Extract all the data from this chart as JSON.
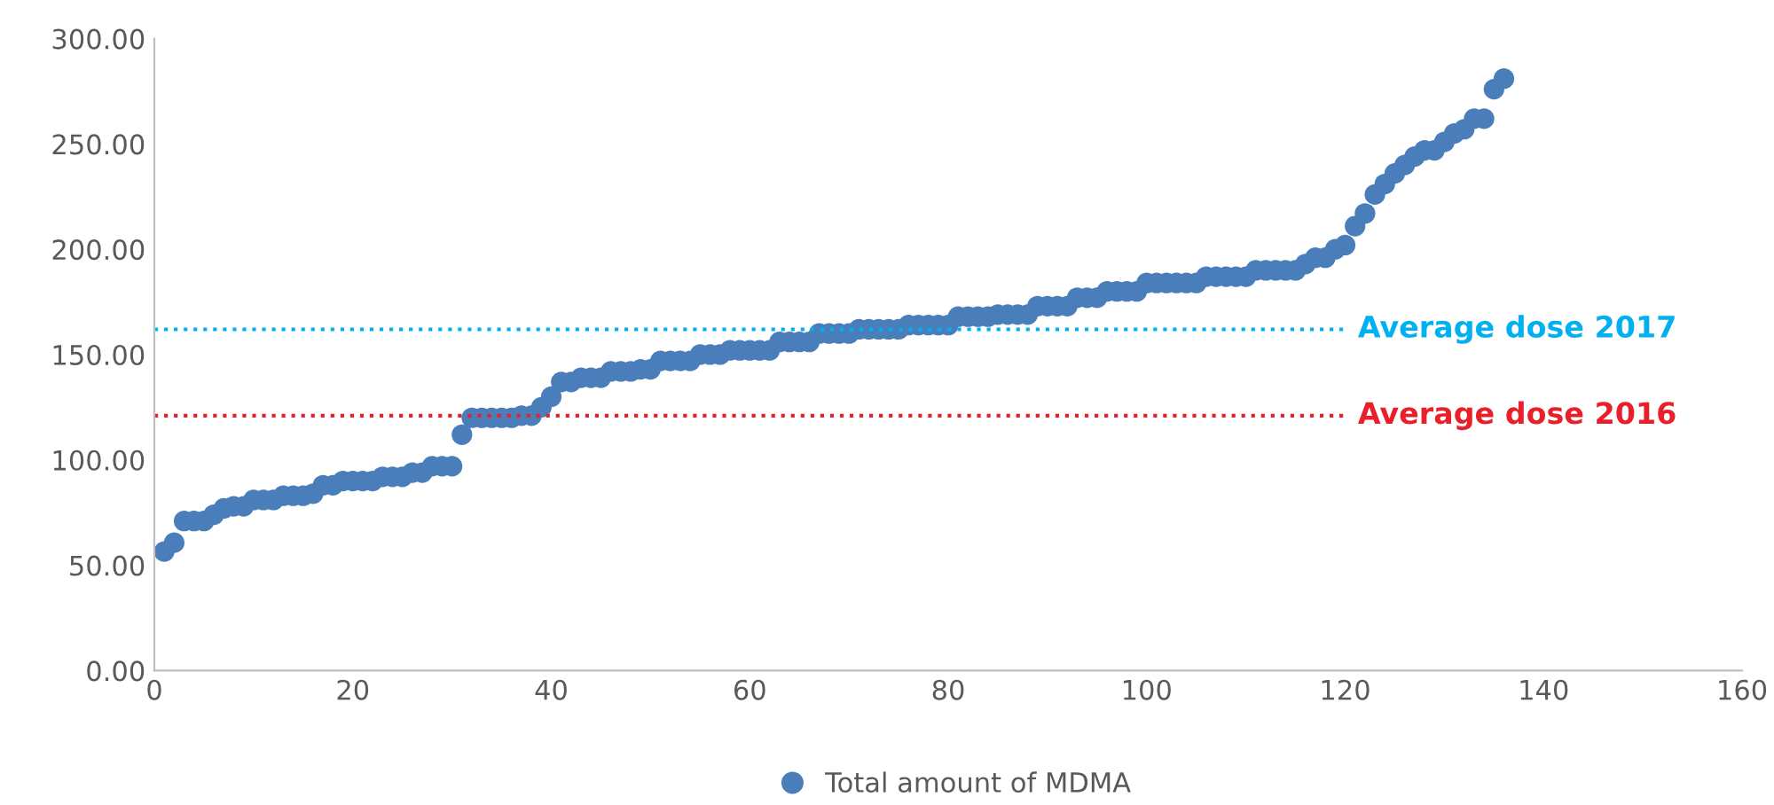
{
  "chart_data": {
    "type": "scatter",
    "x": [
      1,
      2,
      3,
      4,
      5,
      6,
      7,
      8,
      9,
      10,
      11,
      12,
      13,
      14,
      15,
      16,
      17,
      18,
      19,
      20,
      21,
      22,
      23,
      24,
      25,
      26,
      27,
      28,
      29,
      30,
      31,
      32,
      33,
      34,
      35,
      36,
      37,
      38,
      39,
      40,
      41,
      42,
      43,
      44,
      45,
      46,
      47,
      48,
      49,
      50,
      51,
      52,
      53,
      54,
      55,
      56,
      57,
      58,
      59,
      60,
      61,
      62,
      63,
      64,
      65,
      66,
      67,
      68,
      69,
      70,
      71,
      72,
      73,
      74,
      75,
      76,
      77,
      78,
      79,
      80,
      81,
      82,
      83,
      84,
      85,
      86,
      87,
      88,
      89,
      90,
      91,
      92,
      93,
      94,
      95,
      96,
      97,
      98,
      99,
      100,
      101,
      102,
      103,
      104,
      105,
      106,
      107,
      108,
      109,
      110,
      111,
      112,
      113,
      114,
      115,
      116,
      117,
      118,
      119,
      120,
      121,
      122,
      123,
      124,
      125,
      126,
      127,
      128,
      129,
      130,
      131,
      132,
      133,
      134,
      135,
      136
    ],
    "series": [
      {
        "name": "Total amount of MDMA",
        "color": "#4a7ebb",
        "values": [
          56.5,
          60.7,
          71,
          71,
          71,
          74,
          77,
          78,
          78,
          81,
          81,
          81,
          83,
          83,
          83,
          84,
          88,
          88,
          90,
          90,
          90,
          90,
          92,
          92,
          92,
          94,
          94,
          97,
          97,
          97,
          112,
          120,
          120,
          120,
          120,
          120,
          121,
          121,
          125,
          130,
          137,
          137,
          139,
          139,
          139,
          142,
          142,
          142,
          143,
          143,
          147,
          147,
          147,
          147,
          150,
          150,
          150,
          152,
          152,
          152,
          152,
          152,
          156,
          156,
          156,
          156,
          160,
          160,
          160,
          160,
          162,
          162,
          162,
          162,
          162,
          164,
          164,
          164,
          164,
          164,
          168,
          168,
          168,
          168,
          169,
          169,
          169,
          169,
          173,
          173,
          173,
          173,
          177,
          177,
          177,
          180,
          180,
          180,
          180,
          184,
          184,
          184,
          184,
          184,
          184,
          187,
          187,
          187,
          187,
          187,
          190,
          190,
          190,
          190,
          190,
          193,
          196,
          196,
          200,
          202,
          211,
          217,
          226,
          231,
          236,
          240,
          244,
          247,
          247,
          251,
          255,
          257,
          262,
          262,
          276,
          281
        ]
      }
    ],
    "xlim": [
      0,
      160
    ],
    "xticks": [
      0,
      20,
      40,
      60,
      80,
      100,
      120,
      140,
      160
    ],
    "ylim": [
      0,
      300
    ],
    "yticks": [
      {
        "value": 0,
        "label": "0.00"
      },
      {
        "value": 50,
        "label": "50.00"
      },
      {
        "value": 100,
        "label": "100.00"
      },
      {
        "value": 150,
        "label": "150.00"
      },
      {
        "value": 200,
        "label": "200.00"
      },
      {
        "value": 250,
        "label": "250.00"
      },
      {
        "value": 300,
        "label": "300.00"
      }
    ],
    "ref_lines": [
      {
        "axis": "y",
        "value": 162,
        "label": "Average dose 2017",
        "color": "#00b0f0",
        "line_style": "dotted"
      },
      {
        "axis": "y",
        "value": 121,
        "label": "Average dose 2016",
        "color": "#e8202a",
        "line_style": "dotted"
      }
    ],
    "marker": "circle",
    "grid": false,
    "legend": "bottom"
  }
}
